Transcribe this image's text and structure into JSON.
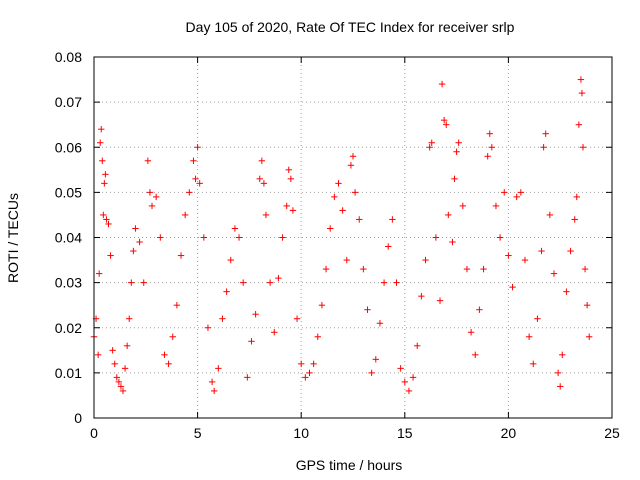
{
  "chart_data": {
    "type": "scatter",
    "title": "Day 105 of 2020, Rate Of TEC Index for receiver srlp",
    "xlabel": "GPS time / hours",
    "ylabel": "ROTI / TECUs",
    "xlim": [
      0,
      25
    ],
    "ylim": [
      0,
      0.08
    ],
    "x_ticks": [
      0,
      5,
      10,
      15,
      20,
      25
    ],
    "y_ticks": [
      0,
      0.01,
      0.02,
      0.03,
      0.04,
      0.05,
      0.06,
      0.07,
      0.08
    ],
    "x_tick_labels": [
      "0",
      "5",
      "10",
      "15",
      "20",
      "25"
    ],
    "y_tick_labels": [
      "0",
      "0.01",
      "0.02",
      "0.03",
      "0.04",
      "0.05",
      "0.06",
      "0.07",
      "0.08"
    ],
    "grid": true,
    "marker": "+",
    "color": "#ff0000",
    "x_range_data": [
      0,
      23.9
    ],
    "series": [
      {
        "name": "ROTI",
        "points": [
          [
            0.0,
            0.018
          ],
          [
            0.1,
            0.022
          ],
          [
            0.2,
            0.014
          ],
          [
            0.25,
            0.032
          ],
          [
            0.3,
            0.061
          ],
          [
            0.35,
            0.064
          ],
          [
            0.4,
            0.057
          ],
          [
            0.45,
            0.045
          ],
          [
            0.5,
            0.052
          ],
          [
            0.55,
            0.054
          ],
          [
            0.6,
            0.044
          ],
          [
            0.7,
            0.043
          ],
          [
            0.8,
            0.036
          ],
          [
            0.9,
            0.015
          ],
          [
            1.0,
            0.012
          ],
          [
            1.1,
            0.009
          ],
          [
            1.2,
            0.008
          ],
          [
            1.3,
            0.007
          ],
          [
            1.4,
            0.006
          ],
          [
            1.5,
            0.011
          ],
          [
            1.6,
            0.016
          ],
          [
            1.7,
            0.022
          ],
          [
            1.8,
            0.03
          ],
          [
            1.9,
            0.037
          ],
          [
            2.0,
            0.042
          ],
          [
            2.2,
            0.039
          ],
          [
            2.4,
            0.03
          ],
          [
            2.6,
            0.057
          ],
          [
            2.7,
            0.05
          ],
          [
            2.8,
            0.047
          ],
          [
            3.0,
            0.049
          ],
          [
            3.2,
            0.04
          ],
          [
            3.4,
            0.014
          ],
          [
            3.6,
            0.012
          ],
          [
            3.8,
            0.018
          ],
          [
            4.0,
            0.025
          ],
          [
            4.2,
            0.036
          ],
          [
            4.4,
            0.045
          ],
          [
            4.6,
            0.05
          ],
          [
            4.8,
            0.057
          ],
          [
            4.9,
            0.053
          ],
          [
            5.0,
            0.06
          ],
          [
            5.1,
            0.052
          ],
          [
            5.3,
            0.04
          ],
          [
            5.5,
            0.02
          ],
          [
            5.7,
            0.008
          ],
          [
            5.8,
            0.006
          ],
          [
            6.0,
            0.011
          ],
          [
            6.2,
            0.022
          ],
          [
            6.4,
            0.028
          ],
          [
            6.6,
            0.035
          ],
          [
            6.8,
            0.042
          ],
          [
            7.0,
            0.04
          ],
          [
            7.2,
            0.03
          ],
          [
            7.4,
            0.009
          ],
          [
            7.6,
            0.017
          ],
          [
            7.8,
            0.023
          ],
          [
            8.0,
            0.053
          ],
          [
            8.1,
            0.057
          ],
          [
            8.2,
            0.052
          ],
          [
            8.3,
            0.045
          ],
          [
            8.5,
            0.03
          ],
          [
            8.7,
            0.019
          ],
          [
            8.9,
            0.031
          ],
          [
            9.1,
            0.04
          ],
          [
            9.3,
            0.047
          ],
          [
            9.4,
            0.055
          ],
          [
            9.5,
            0.053
          ],
          [
            9.6,
            0.046
          ],
          [
            9.8,
            0.022
          ],
          [
            10.0,
            0.012
          ],
          [
            10.2,
            0.009
          ],
          [
            10.4,
            0.01
          ],
          [
            10.6,
            0.012
          ],
          [
            10.8,
            0.018
          ],
          [
            11.0,
            0.025
          ],
          [
            11.2,
            0.033
          ],
          [
            11.4,
            0.042
          ],
          [
            11.6,
            0.049
          ],
          [
            11.8,
            0.052
          ],
          [
            12.0,
            0.046
          ],
          [
            12.2,
            0.035
          ],
          [
            12.4,
            0.056
          ],
          [
            12.5,
            0.058
          ],
          [
            12.6,
            0.05
          ],
          [
            12.8,
            0.044
          ],
          [
            13.0,
            0.033
          ],
          [
            13.2,
            0.024
          ],
          [
            13.4,
            0.01
          ],
          [
            13.6,
            0.013
          ],
          [
            13.8,
            0.021
          ],
          [
            14.0,
            0.03
          ],
          [
            14.2,
            0.038
          ],
          [
            14.4,
            0.044
          ],
          [
            14.6,
            0.03
          ],
          [
            14.8,
            0.011
          ],
          [
            15.0,
            0.008
          ],
          [
            15.2,
            0.006
          ],
          [
            15.4,
            0.009
          ],
          [
            15.6,
            0.016
          ],
          [
            15.8,
            0.027
          ],
          [
            16.0,
            0.035
          ],
          [
            16.2,
            0.06
          ],
          [
            16.3,
            0.061
          ],
          [
            16.5,
            0.04
          ],
          [
            16.7,
            0.026
          ],
          [
            16.8,
            0.074
          ],
          [
            16.9,
            0.066
          ],
          [
            17.0,
            0.065
          ],
          [
            17.1,
            0.045
          ],
          [
            17.3,
            0.039
          ],
          [
            17.4,
            0.053
          ],
          [
            17.5,
            0.059
          ],
          [
            17.6,
            0.061
          ],
          [
            17.8,
            0.047
          ],
          [
            18.0,
            0.033
          ],
          [
            18.2,
            0.019
          ],
          [
            18.4,
            0.014
          ],
          [
            18.6,
            0.024
          ],
          [
            18.8,
            0.033
          ],
          [
            19.0,
            0.058
          ],
          [
            19.1,
            0.063
          ],
          [
            19.2,
            0.06
          ],
          [
            19.4,
            0.047
          ],
          [
            19.6,
            0.04
          ],
          [
            19.8,
            0.05
          ],
          [
            20.0,
            0.036
          ],
          [
            20.2,
            0.029
          ],
          [
            20.4,
            0.049
          ],
          [
            20.6,
            0.05
          ],
          [
            20.8,
            0.035
          ],
          [
            21.0,
            0.018
          ],
          [
            21.2,
            0.012
          ],
          [
            21.4,
            0.022
          ],
          [
            21.6,
            0.037
          ],
          [
            21.7,
            0.06
          ],
          [
            21.8,
            0.063
          ],
          [
            22.0,
            0.045
          ],
          [
            22.2,
            0.032
          ],
          [
            22.4,
            0.01
          ],
          [
            22.5,
            0.007
          ],
          [
            22.6,
            0.014
          ],
          [
            22.8,
            0.028
          ],
          [
            23.0,
            0.037
          ],
          [
            23.2,
            0.044
          ],
          [
            23.3,
            0.049
          ],
          [
            23.4,
            0.065
          ],
          [
            23.5,
            0.075
          ],
          [
            23.55,
            0.072
          ],
          [
            23.6,
            0.06
          ],
          [
            23.7,
            0.033
          ],
          [
            23.8,
            0.025
          ],
          [
            23.9,
            0.018
          ]
        ]
      }
    ]
  }
}
